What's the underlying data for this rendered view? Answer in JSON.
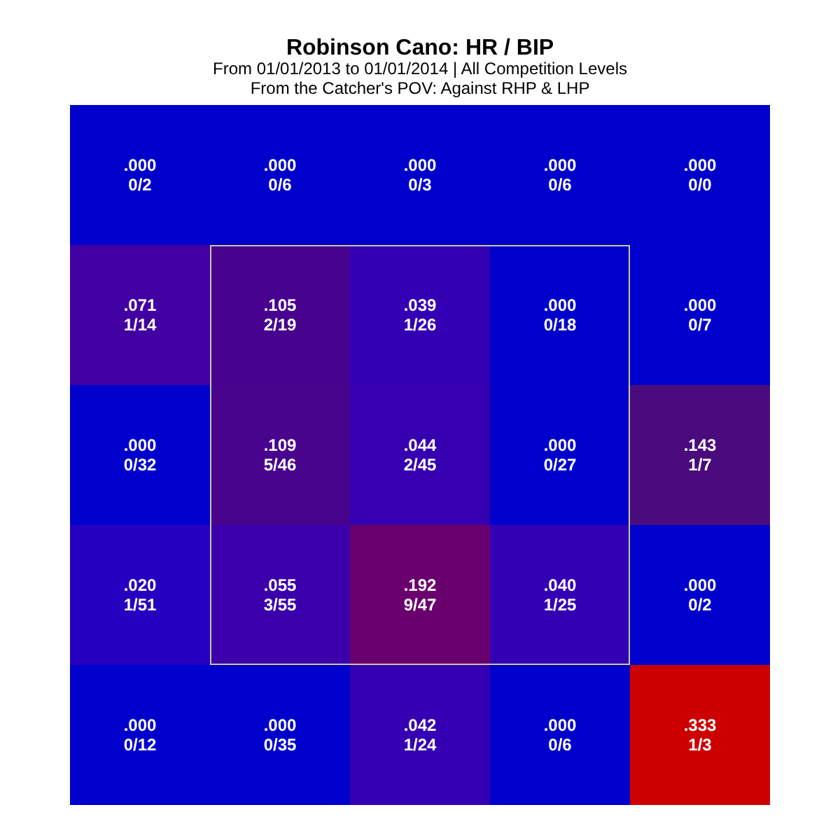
{
  "chart_data": {
    "type": "heatmap",
    "title": "Robinson Cano: HR / BIP",
    "subtitle": "From 01/01/2013 to 01/01/2014 | All Competition Levels\nFrom the Catcher's POV:   Against RHP & LHP",
    "categories": [
      null,
      null,
      null,
      null,
      null
    ],
    "y_categories": [
      null,
      null,
      null,
      null,
      null
    ],
    "cells": [
      [
        0,
        0,
        0,
        0,
        0
      ],
      [
        0.071,
        0.105,
        0.039,
        0,
        0
      ],
      [
        0,
        0.109,
        0.044,
        0,
        0.143
      ],
      [
        0.02,
        0.055,
        0.192,
        0.04,
        0
      ],
      [
        0,
        0,
        0.042,
        0,
        0.333
      ]
    ],
    "data_labels": true,
    "cell_labels": [
      [
        ".000",
        ".000",
        ".000",
        ".000",
        ".000"
      ],
      [
        ".071",
        ".105",
        ".039",
        ".000",
        ".000"
      ],
      [
        ".000",
        ".109",
        ".044",
        ".000",
        ".143"
      ],
      [
        ".020",
        ".055",
        ".192",
        ".040",
        ".000"
      ],
      [
        ".000",
        ".000",
        ".042",
        ".000",
        ".333"
      ]
    ],
    "annotations": [
      "0/2",
      "0/6",
      "0/3",
      "0/6",
      "0/0",
      "1/14",
      "2/19",
      "1/26",
      "0/18",
      "0/7",
      "0/32",
      "5/46",
      "2/45",
      "0/27",
      "1/7",
      "1/51",
      "3/55",
      "9/47",
      "1/25",
      "0/2",
      "0/12",
      "0/35",
      "1/24",
      "0/6",
      "1/3"
    ]
  }
}
